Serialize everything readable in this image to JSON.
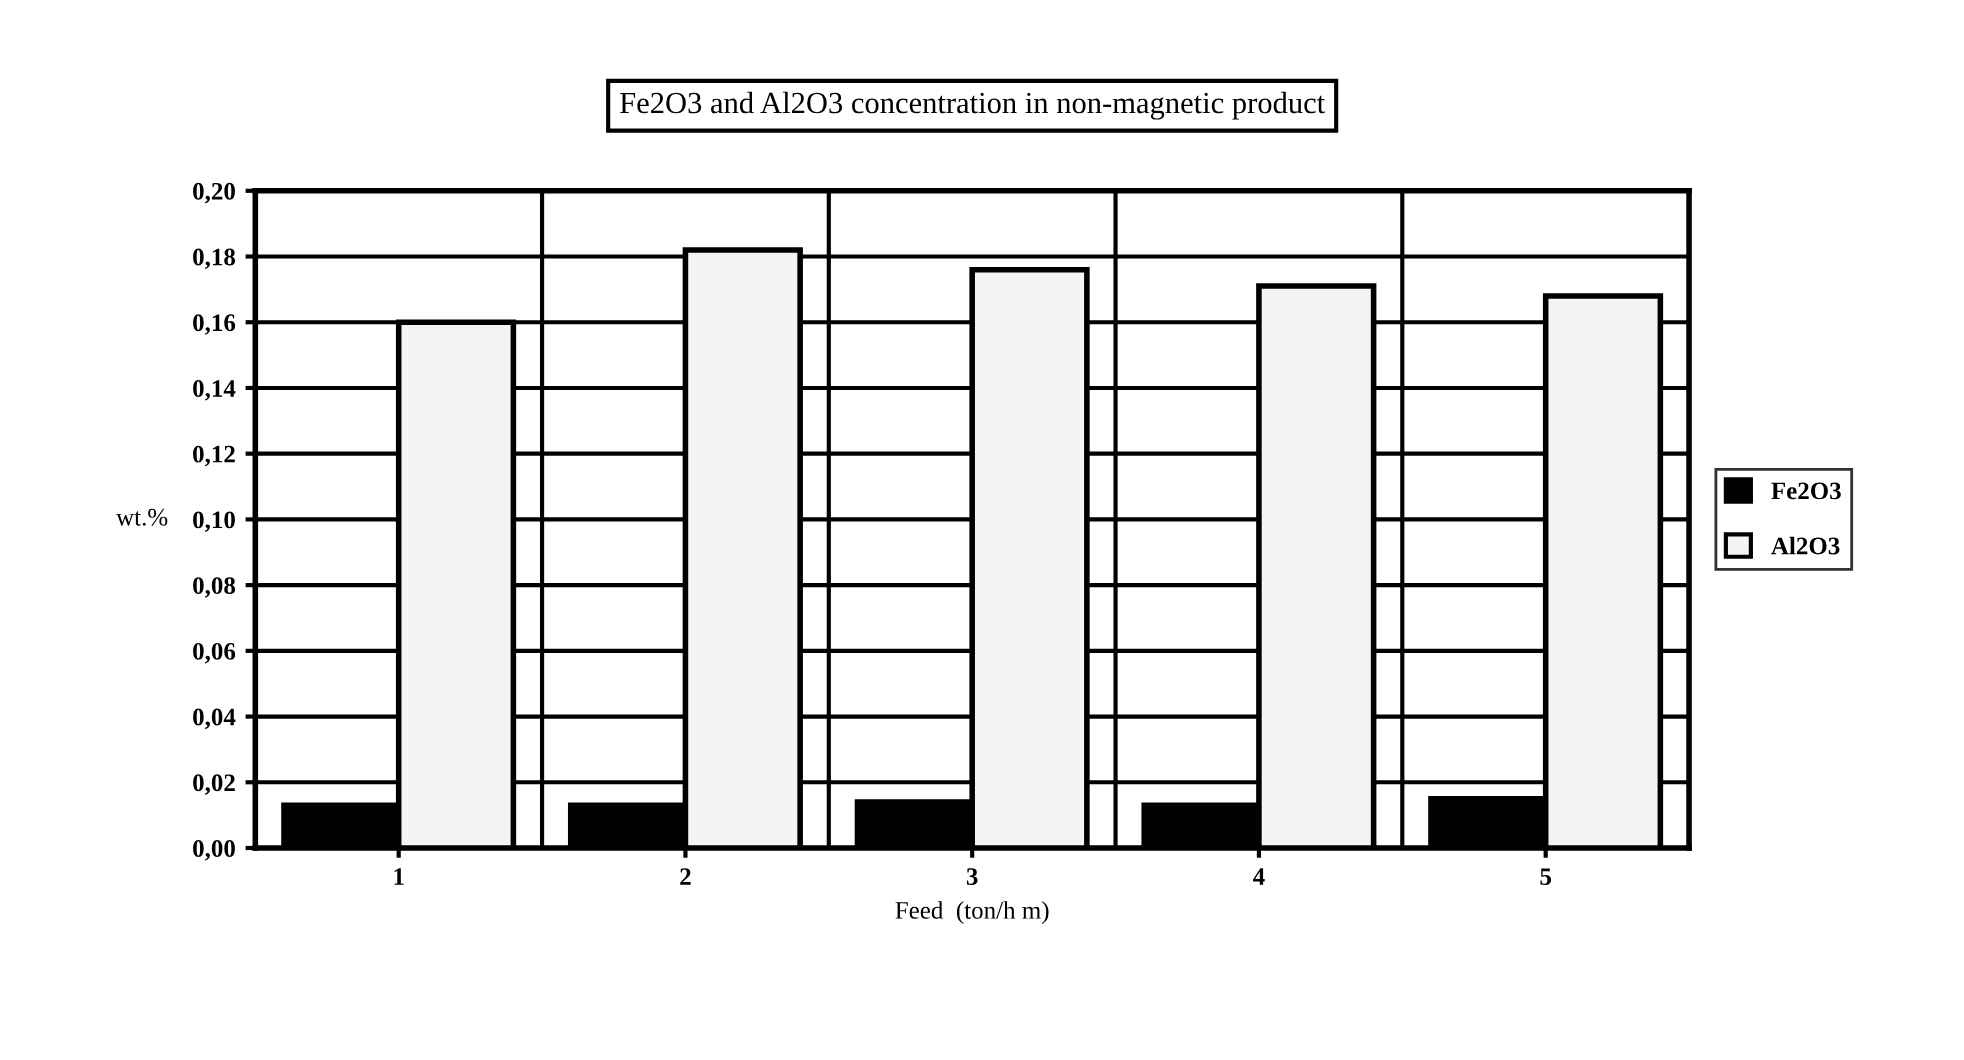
{
  "chart_data": {
    "type": "bar",
    "title": "Fe2O3 and Al2O3 concentration in non-magnetic product",
    "xlabel": "Feed  (ton/h m)",
    "ylabel": "wt.%",
    "categories": [
      "1",
      "2",
      "3",
      "4",
      "5"
    ],
    "series": [
      {
        "name": "Fe2O3",
        "color": "#000000",
        "values": [
          0.013,
          0.013,
          0.014,
          0.013,
          0.015
        ]
      },
      {
        "name": "Al2O3",
        "color": "#f4f4f4",
        "values": [
          0.16,
          0.182,
          0.176,
          0.171,
          0.168
        ]
      }
    ],
    "ylim": [
      0,
      0.2
    ],
    "yticks": [
      {
        "value": 0,
        "label": "0,00"
      },
      {
        "value": 0.02,
        "label": "0,02"
      },
      {
        "value": 0.04,
        "label": "0,04"
      },
      {
        "value": 0.06,
        "label": "0,06"
      },
      {
        "value": 0.08,
        "label": "0,08"
      },
      {
        "value": 0.1,
        "label": "0,10"
      },
      {
        "value": 0.12,
        "label": "0,12"
      },
      {
        "value": 0.14,
        "label": "0,14"
      },
      {
        "value": 0.16,
        "label": "0,16"
      },
      {
        "value": 0.18,
        "label": "0,18"
      },
      {
        "value": 0.2,
        "label": "0,20"
      }
    ],
    "grid": true,
    "legend": "right"
  }
}
